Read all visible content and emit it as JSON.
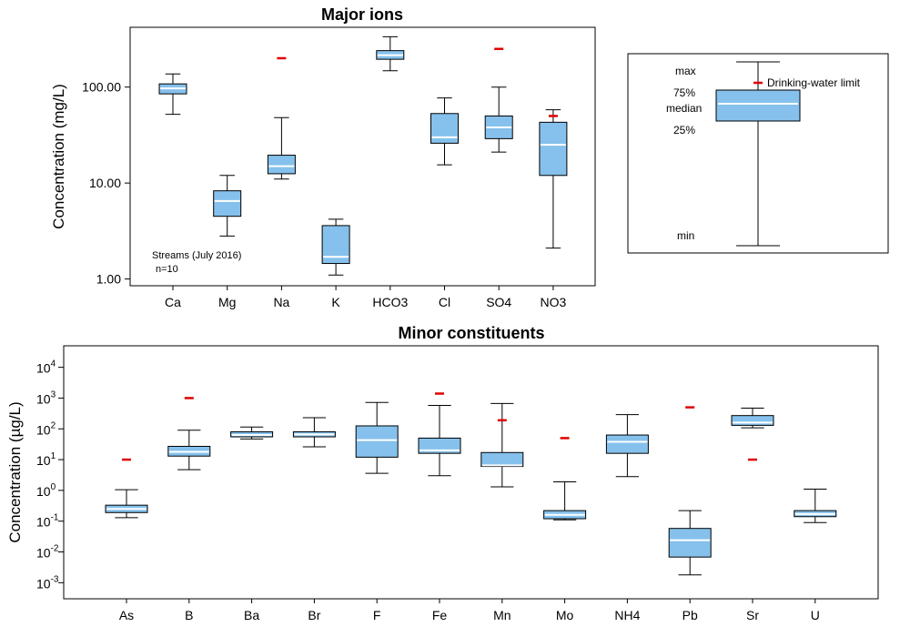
{
  "colors": {
    "box_fill": "#85c1ec",
    "median": "#ffffff",
    "limit": "#e00000",
    "frame": "#000000"
  },
  "chart_data": [
    {
      "type": "boxplot",
      "title": "Major ions",
      "xlabel": "",
      "ylabel": "Concentration (mg/L)",
      "yscale": "log",
      "ylim": [
        0.85,
        420
      ],
      "yticks": [
        {
          "value": 1,
          "label": "1.00"
        },
        {
          "value": 10,
          "label": "10.00"
        },
        {
          "value": 100,
          "label": "100.00"
        }
      ],
      "annotation": [
        "Streams (July 2016)",
        "n=10"
      ],
      "categories": [
        {
          "name": "Ca",
          "min": 52,
          "q1": 85,
          "median": 97,
          "q3": 108,
          "max": 137,
          "limit": null
        },
        {
          "name": "Mg",
          "min": 2.8,
          "q1": 4.5,
          "median": 6.5,
          "q3": 8.3,
          "max": 12,
          "limit": null
        },
        {
          "name": "Na",
          "min": 11,
          "q1": 12.5,
          "median": 15,
          "q3": 19.5,
          "max": 48,
          "limit": 200
        },
        {
          "name": "K",
          "min": 1.1,
          "q1": 1.45,
          "median": 1.7,
          "q3": 3.6,
          "max": 4.2,
          "limit": null
        },
        {
          "name": "HCO3",
          "min": 148,
          "q1": 195,
          "median": 215,
          "q3": 240,
          "max": 335,
          "limit": null
        },
        {
          "name": "Cl",
          "min": 15.5,
          "q1": 26,
          "median": 30,
          "q3": 53,
          "max": 77,
          "limit": null
        },
        {
          "name": "SO4",
          "min": 21,
          "q1": 29,
          "median": 38,
          "q3": 50,
          "max": 100,
          "limit": 250
        },
        {
          "name": "NO3",
          "min": 2.1,
          "q1": 12,
          "median": 25,
          "q3": 43,
          "max": 58,
          "limit": 50
        }
      ]
    },
    {
      "type": "boxplot",
      "title": "Minor constituents",
      "xlabel": "",
      "ylabel": "Concentration (µg/L)",
      "yscale": "log",
      "ylim": [
        0.0003,
        50000
      ],
      "yticks": [
        {
          "value": 0.001,
          "base": "10",
          "exp": "-3"
        },
        {
          "value": 0.01,
          "base": "10",
          "exp": "-2"
        },
        {
          "value": 0.1,
          "base": "10",
          "exp": "-1"
        },
        {
          "value": 1,
          "base": "10",
          "exp": "0"
        },
        {
          "value": 10,
          "base": "10",
          "exp": "1"
        },
        {
          "value": 100,
          "base": "10",
          "exp": "2"
        },
        {
          "value": 1000,
          "base": "10",
          "exp": "3"
        },
        {
          "value": 10000,
          "base": "10",
          "exp": "4"
        }
      ],
      "categories": [
        {
          "name": "As",
          "min": 0.13,
          "q1": 0.19,
          "median": 0.25,
          "q3": 0.33,
          "max": 1.05,
          "limit": 10
        },
        {
          "name": "B",
          "min": 4.7,
          "q1": 13,
          "median": 18,
          "q3": 27,
          "max": 90,
          "limit": 1000
        },
        {
          "name": "Ba",
          "min": 47,
          "q1": 55,
          "median": 63,
          "q3": 80,
          "max": 115,
          "limit": null
        },
        {
          "name": "Br",
          "min": 26,
          "q1": 55,
          "median": 66,
          "q3": 80,
          "max": 230,
          "limit": null
        },
        {
          "name": "F",
          "min": 3.6,
          "q1": 12,
          "median": 43,
          "q3": 125,
          "max": 720,
          "limit": null
        },
        {
          "name": "Fe",
          "min": 3.0,
          "q1": 16,
          "median": 20,
          "q3": 50,
          "max": 580,
          "limit": 1400
        },
        {
          "name": "Mn",
          "min": 1.3,
          "q1": 6,
          "median": 6.5,
          "q3": 17,
          "max": 670,
          "limit": 190
        },
        {
          "name": "Mo",
          "min": 0.11,
          "q1": 0.12,
          "median": 0.16,
          "q3": 0.22,
          "max": 1.9,
          "limit": 50
        },
        {
          "name": "NH4",
          "min": 2.8,
          "q1": 16,
          "median": 38,
          "q3": 63,
          "max": 290,
          "limit": null
        },
        {
          "name": "Pb",
          "min": 0.0018,
          "q1": 0.0068,
          "median": 0.024,
          "q3": 0.058,
          "max": 0.22,
          "limit": 500
        },
        {
          "name": "Sr",
          "min": 108,
          "q1": 130,
          "median": 160,
          "q3": 270,
          "max": 470,
          "limit": 10
        },
        {
          "name": "U",
          "min": 0.09,
          "q1": 0.14,
          "median": 0.17,
          "q3": 0.22,
          "max": 1.1,
          "limit": null
        }
      ]
    }
  ],
  "legend": {
    "max": "max",
    "q3": "75%",
    "median": "median",
    "q1": "25%",
    "min": "min",
    "limit": "Drinking-water limit"
  }
}
